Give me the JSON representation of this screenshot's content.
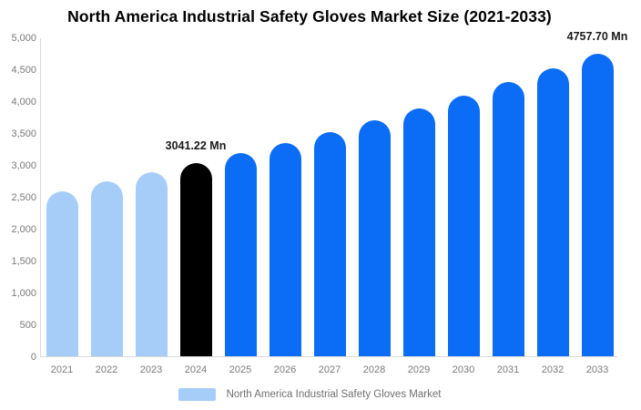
{
  "title": "North America Industrial Safety Gloves Market Size (2021-2033)",
  "chart_data": {
    "type": "bar",
    "title": "North America Industrial Safety Gloves Market Size (2021-2033)",
    "categories": [
      "2021",
      "2022",
      "2023",
      "2024",
      "2025",
      "2026",
      "2027",
      "2028",
      "2029",
      "2030",
      "2031",
      "2032",
      "2033"
    ],
    "values": [
      2600,
      2750,
      2890,
      3041.22,
      3196,
      3359,
      3530,
      3710,
      3899,
      4098,
      4306,
      4526,
      4757.7
    ],
    "unit": "Mn",
    "xlabel": "",
    "ylabel": "",
    "ylim": [
      0,
      5000
    ],
    "y_tick_step": 500,
    "y_tick_labels": [
      "0",
      "500",
      "1,000",
      "1,500",
      "2,000",
      "2,500",
      "3,000",
      "3,500",
      "4,000",
      "4,500",
      "5,000"
    ],
    "grid": false,
    "bar_colors": [
      "#a6cdf8",
      "#a6cdf8",
      "#a6cdf8",
      "#000000",
      "#0b6cf5",
      "#0b6cf5",
      "#0b6cf5",
      "#0b6cf5",
      "#0b6cf5",
      "#0b6cf5",
      "#0b6cf5",
      "#0b6cf5",
      "#0b6cf5"
    ],
    "annotations": [
      {
        "index": 3,
        "category": "2024",
        "text": "3041.22 Mn"
      },
      {
        "index": 12,
        "category": "2033",
        "text": "4757.70 Mn"
      }
    ],
    "legend": {
      "position": "bottom",
      "items": [
        {
          "label": "North America Industrial Safety Gloves Market",
          "swatch_color": "#a6cdf8"
        }
      ]
    }
  },
  "colors": {
    "historical_bar": "#a6cdf8",
    "base_year_bar": "#000000",
    "forecast_bar": "#0b6cf5",
    "axis_text": "#7a7a7a",
    "axis_line": "#d9d9d9",
    "title_text": "#000000",
    "annotation_text": "#1a1a1a",
    "legend_text": "#6f6f6f",
    "background": "#ffffff"
  }
}
